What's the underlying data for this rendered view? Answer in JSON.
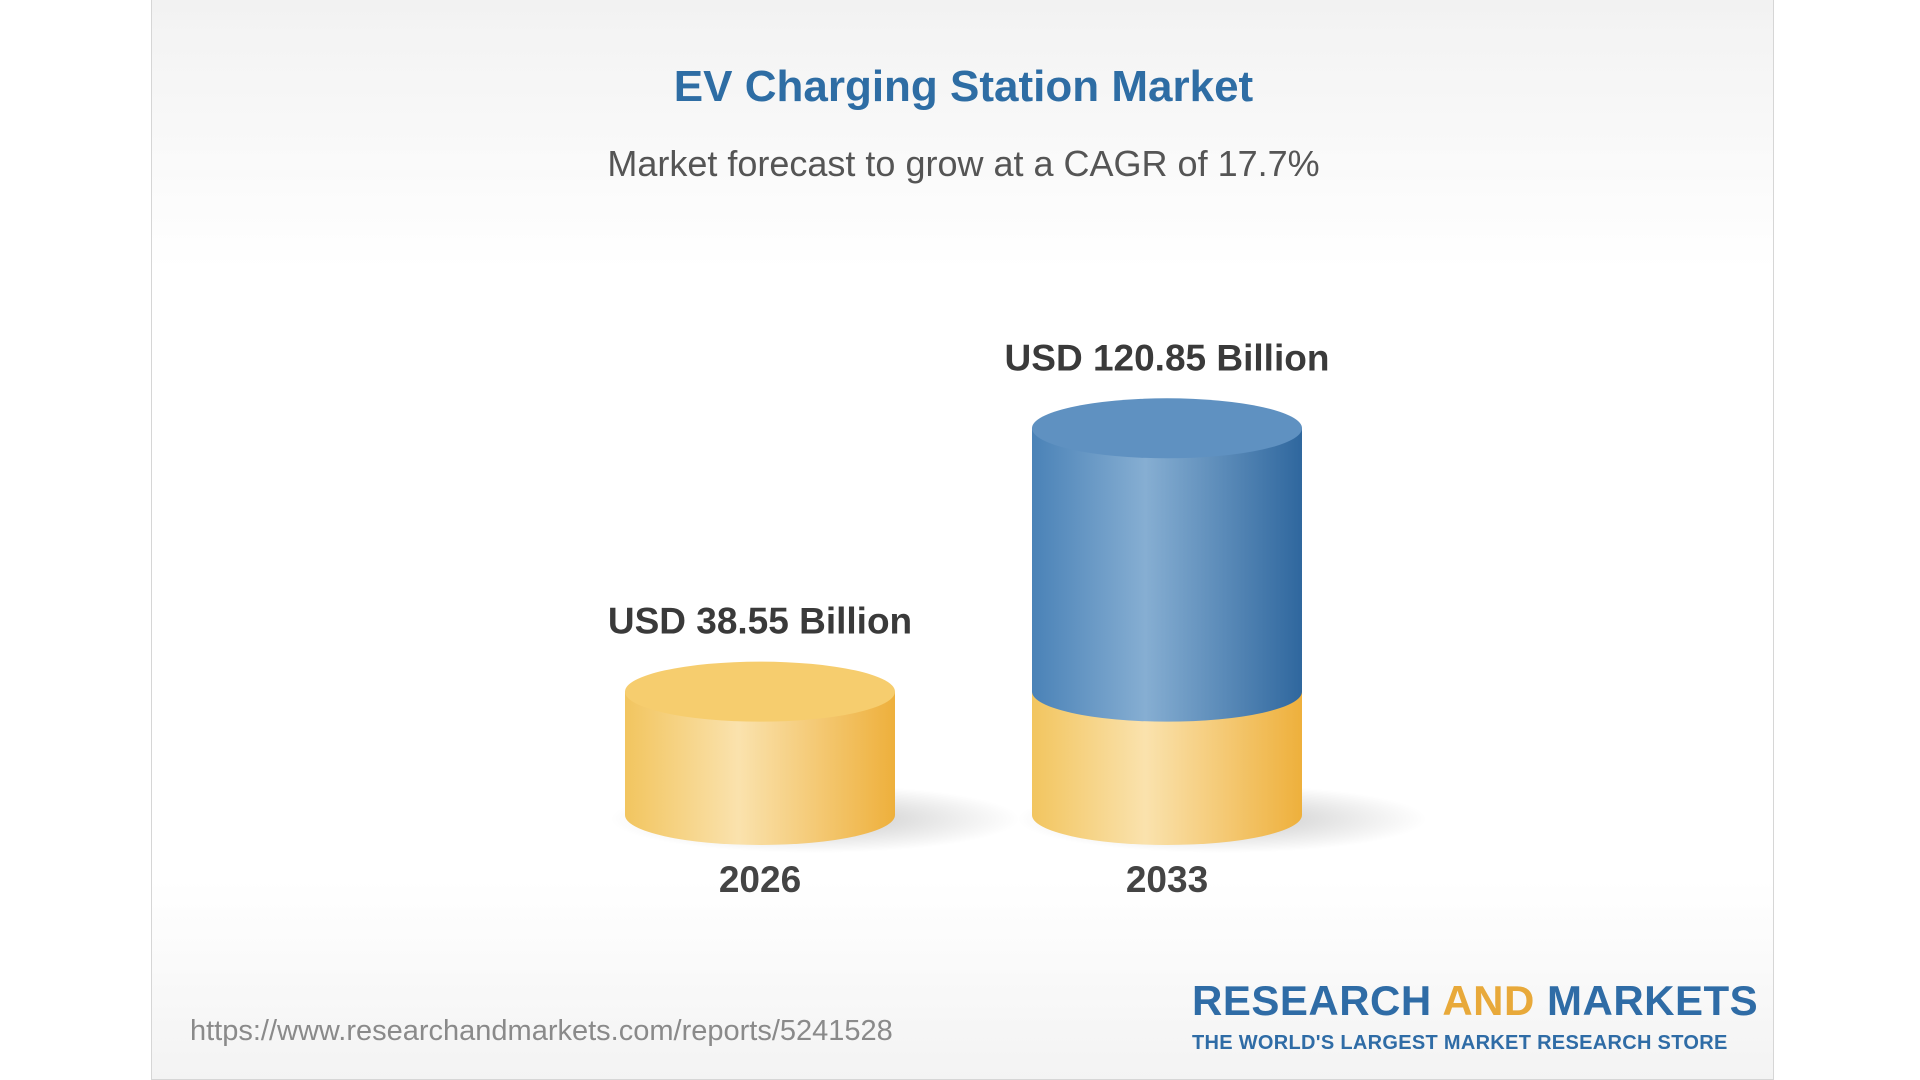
{
  "title": "EV Charging Station Market",
  "subtitle": "Market forecast to grow at a CAGR of 17.7%",
  "chart_data": {
    "type": "bar",
    "categories": [
      "2026",
      "2033"
    ],
    "values": [
      38.55,
      120.85
    ],
    "value_labels": [
      "USD 38.55 Billion",
      "USD 120.85 Billion"
    ],
    "unit": "USD Billion",
    "title": "EV Charging Station Market",
    "subtitle": "Market forecast to grow at a CAGR of 17.7%",
    "cagr": "17.7%",
    "colors": {
      "base": "#f1c25b",
      "growth": "#3f78ad"
    },
    "grid": false,
    "legend": "none"
  },
  "footer": {
    "url": "https://www.researchandmarkets.com/reports/5241528"
  },
  "logo": {
    "word1": "RESEARCH",
    "word2": "AND",
    "word3": "MARKETS",
    "tagline": "THE WORLD'S LARGEST MARKET RESEARCH STORE"
  }
}
